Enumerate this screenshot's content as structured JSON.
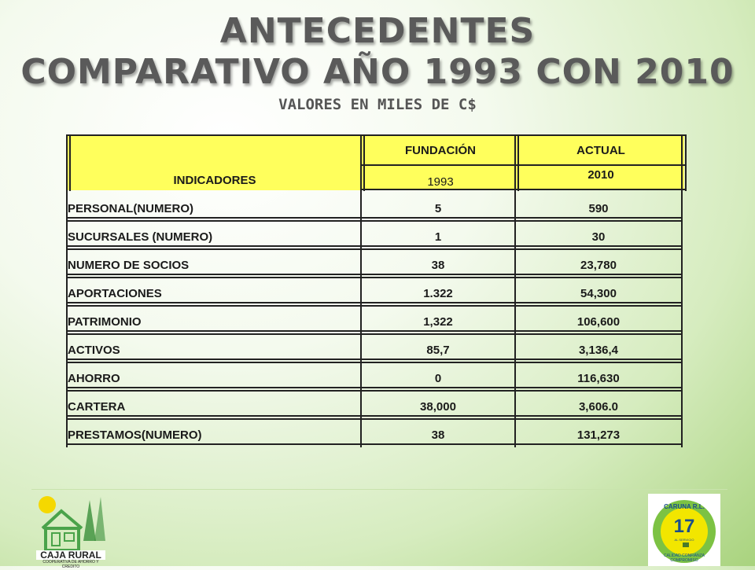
{
  "header": {
    "title_line1": "ANTECEDENTES",
    "title_line2": "COMPARATIVO AÑO 1993 CON 2010",
    "subtitle": "VALORES EN MILES DE C$"
  },
  "table": {
    "col_indicadores": "INDICADORES",
    "col_fundacion": "FUNDACIÓN",
    "col_actual": "ACTUAL",
    "year_fundacion": "1993",
    "year_actual": "2010",
    "rows": [
      {
        "indicator": "PERSONAL(NUMERO)",
        "y1993": "5",
        "y2010": "590"
      },
      {
        "indicator": "SUCURSALES (NUMERO)",
        "y1993": "1",
        "y2010": "30"
      },
      {
        "indicator": "NUMERO DE SOCIOS",
        "y1993": "38",
        "y2010": "23,780"
      },
      {
        "indicator": "APORTACIONES",
        "y1993": "1.322",
        "y2010": "54,300"
      },
      {
        "indicator": "PATRIMONIO",
        "y1993": "1,322",
        "y2010": "106,600"
      },
      {
        "indicator": "ACTIVOS",
        "y1993": "85,7",
        "y2010": "3,136,4"
      },
      {
        "indicator": " AHORRO",
        "y1993": "0",
        "y2010": "116,630"
      },
      {
        "indicator": " CARTERA",
        "y1993": "38,000",
        "y2010": "3,606.0"
      },
      {
        "indicator": "PRESTAMOS(NUMERO)",
        "y1993": "38",
        "y2010": "131,273"
      }
    ]
  },
  "logos": {
    "left_text_main": "CAJA RURAL",
    "left_text_sub": "COOPERATIVA DE AHORRO Y CREDITO",
    "right_text_top": "CARUNA R.L.",
    "right_number": "17",
    "right_text_bottom": "CALIDAD CONFIANZA COMPROMISO",
    "right_small": "AL SERVICIO"
  },
  "colors": {
    "header_yellow": "#ffff5c",
    "title_gray": "#5a5a5a",
    "background_green": "#a9d37e"
  }
}
